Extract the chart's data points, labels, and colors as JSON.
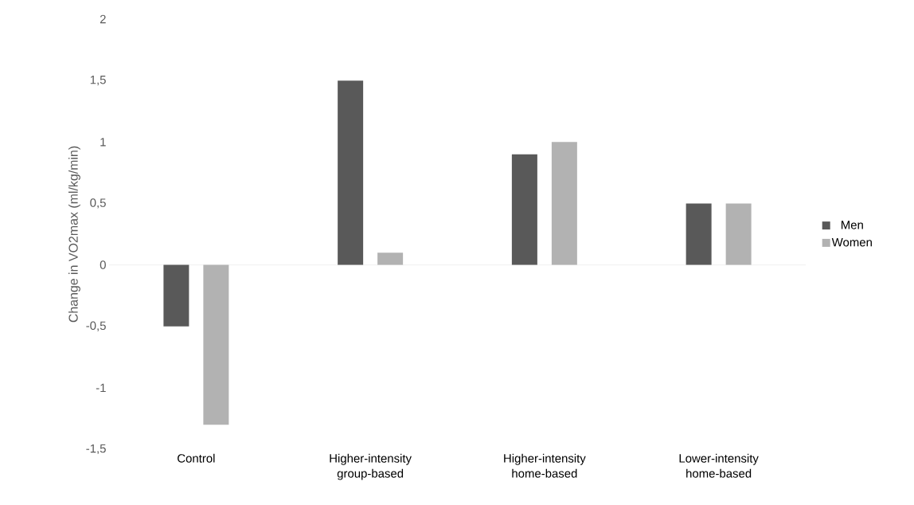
{
  "chart_data": {
    "type": "bar",
    "ylabel": "Change in VO2max (ml/kg/min)",
    "categories": [
      "Control",
      "Higher-intensity group-based",
      "Higher-intensity home-based",
      "Lower-intensity home-based"
    ],
    "series": [
      {
        "name": "Men",
        "color": "#595959",
        "values": [
          -0.5,
          1.5,
          0.9,
          0.5
        ]
      },
      {
        "name": "Women",
        "color": "#b2b2b2",
        "values": [
          -1.3,
          0.1,
          1.0,
          0.5
        ]
      }
    ],
    "ylim": [
      -1.5,
      2
    ],
    "yticks": [
      {
        "value": -1.5,
        "label": "-1,5"
      },
      {
        "value": -1,
        "label": "-1"
      },
      {
        "value": -0.5,
        "label": "-0,5"
      },
      {
        "value": 0,
        "label": "0"
      },
      {
        "value": 0.5,
        "label": "0,5"
      },
      {
        "value": 1,
        "label": "1"
      },
      {
        "value": 1.5,
        "label": "1,5"
      },
      {
        "value": 2,
        "label": "2"
      }
    ],
    "ref_lines": [
      {
        "axis": "y",
        "value": 0,
        "color": "#d9d9d9"
      }
    ],
    "legend": "right"
  }
}
